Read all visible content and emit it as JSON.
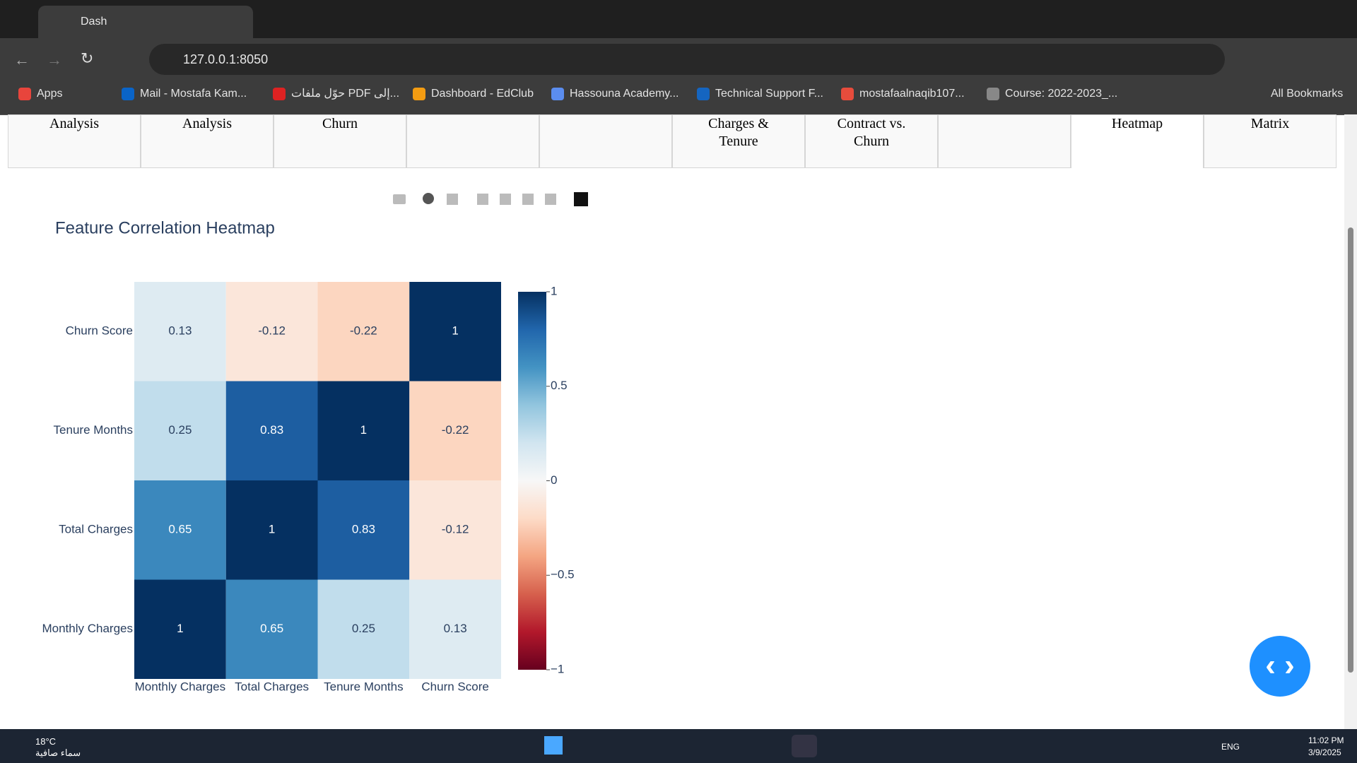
{
  "browser": {
    "tab_title": "Dash",
    "url": "127.0.0.1:8050",
    "bookmarks": [
      "Apps",
      "Mail - Mostafa Kam...",
      "حوّل ملفات PDF إلى...",
      "Dashboard - EdClub",
      "Hassouna Academy...",
      "Technical Support F...",
      "mostafaalnaqib107...",
      "Course: 2022-2023_..."
    ],
    "all_bookmarks": "All Bookmarks"
  },
  "tabs": [
    {
      "label": "Analysis"
    },
    {
      "label": "Analysis"
    },
    {
      "label": "Churn"
    },
    {
      "label": null
    },
    {
      "label": null
    },
    {
      "label": "Charges & Tenure"
    },
    {
      "label": "Contract vs. Churn"
    },
    {
      "label": null
    },
    {
      "label": "Heatmap",
      "active": true
    },
    {
      "label": "Matrix"
    }
  ],
  "chart_data": {
    "type": "heatmap",
    "title": "Feature Correlation Heatmap",
    "x": [
      "Monthly Charges",
      "Total Charges",
      "Tenure Months",
      "Churn Score"
    ],
    "y": [
      "Monthly Charges",
      "Total Charges",
      "Tenure Months",
      "Churn Score"
    ],
    "z": [
      [
        1,
        0.65,
        0.25,
        0.13
      ],
      [
        0.65,
        1,
        0.83,
        -0.12
      ],
      [
        0.25,
        0.83,
        1,
        -0.22
      ],
      [
        0.13,
        -0.12,
        -0.22,
        1
      ]
    ],
    "zlim": [
      -1,
      1
    ],
    "zticks": [
      1,
      0.5,
      0,
      {
        "value": -0.5,
        "label": "−0.5"
      },
      {
        "value": -1,
        "label": "−1"
      }
    ],
    "colorscale": [
      [
        0,
        "#67001f"
      ],
      [
        0.1,
        "#b2182b"
      ],
      [
        0.2,
        "#d6604d"
      ],
      [
        0.3,
        "#f4a582"
      ],
      [
        0.4,
        "#fddbc7"
      ],
      [
        0.5,
        "#f7f7f7"
      ],
      [
        0.6,
        "#d1e5f0"
      ],
      [
        0.7,
        "#92c5de"
      ],
      [
        0.8,
        "#4393c3"
      ],
      [
        0.9,
        "#2166ac"
      ],
      [
        1,
        "#053061"
      ]
    ]
  },
  "taskbar": {
    "temperature": "18°C",
    "weather": "سماء صافية",
    "language": "ENG",
    "time": "11:02 PM",
    "date": "3/9/2025"
  }
}
